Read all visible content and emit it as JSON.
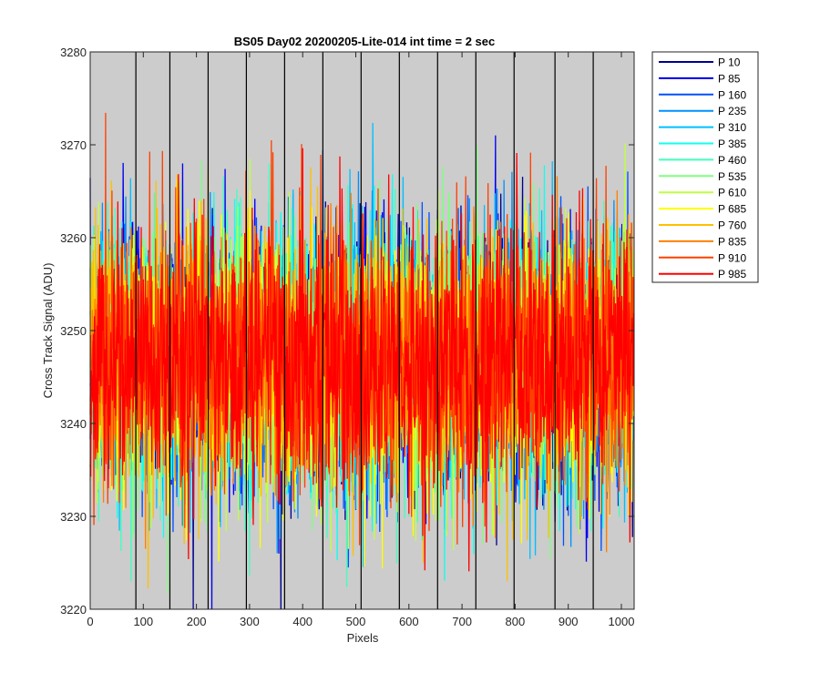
{
  "chart_data": {
    "type": "line",
    "title": "BS05 Day02 20200205-Lite-014 int time = 2 sec",
    "xlabel": "Pixels",
    "ylabel": "Cross Track Signal (ADU)",
    "xlim": [
      0,
      1024
    ],
    "ylim": [
      3220,
      3280
    ],
    "xticks": [
      0,
      100,
      200,
      300,
      400,
      500,
      600,
      700,
      800,
      900,
      1000
    ],
    "yticks": [
      3220,
      3230,
      3240,
      3250,
      3260,
      3270,
      3280
    ],
    "xtick_labels": [
      "0",
      "100",
      "200",
      "300",
      "400",
      "500",
      "600",
      "700",
      "800",
      "900",
      "1000"
    ],
    "ytick_labels": [
      "3220",
      "3230",
      "3240",
      "3250",
      "3260",
      "3270",
      "3280"
    ],
    "background_color": "#cccccc",
    "grid": false,
    "legend_position": "outside-top-right",
    "vertical_markers": [
      86,
      150,
      222,
      294,
      366,
      438,
      510,
      582,
      654,
      726,
      798,
      875,
      947
    ],
    "marker_color": "#000000",
    "noise": {
      "mean": 3247,
      "std": 7,
      "min": 3220,
      "max": 3276,
      "points_per_series": 1024
    },
    "series": [
      {
        "name": "P 10",
        "color": "#00008f"
      },
      {
        "name": "P 85",
        "color": "#0000ef"
      },
      {
        "name": "P 160",
        "color": "#0050ff"
      },
      {
        "name": "P 235",
        "color": "#0090ff"
      },
      {
        "name": "P 310",
        "color": "#00c0ff"
      },
      {
        "name": "P 385",
        "color": "#10ffef"
      },
      {
        "name": "P 460",
        "color": "#40ffbf"
      },
      {
        "name": "P 535",
        "color": "#80ff80"
      },
      {
        "name": "P 610",
        "color": "#c0ff40"
      },
      {
        "name": "P 685",
        "color": "#ffff00"
      },
      {
        "name": "P 760",
        "color": "#ffc000"
      },
      {
        "name": "P 835",
        "color": "#ff8000"
      },
      {
        "name": "P 910",
        "color": "#ff4000"
      },
      {
        "name": "P 985",
        "color": "#ff0000"
      }
    ]
  }
}
